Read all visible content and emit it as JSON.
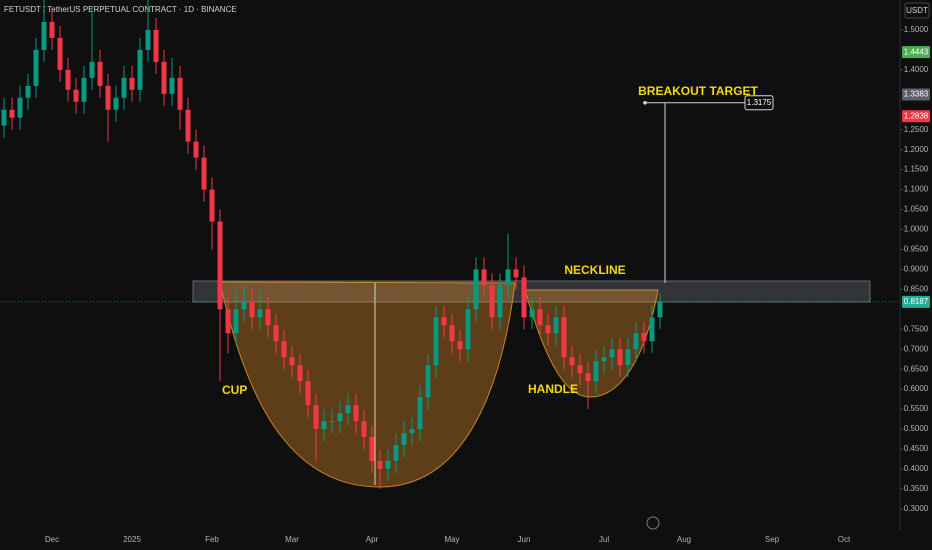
{
  "chart_data": {
    "type": "candlestick",
    "title": "FETUSDT / TetherUS PERPETUAL CONTRACT · 1D · BINANCE",
    "currency": "USDT",
    "categories": [
      null,
      null,
      null,
      null,
      null,
      null,
      "Dec",
      null,
      null,
      null,
      null,
      null,
      null,
      null,
      null,
      null,
      "2025",
      null,
      null,
      null,
      null,
      null,
      null,
      null,
      null,
      null,
      "Feb",
      null,
      null,
      null,
      null,
      null,
      null,
      null,
      null,
      null,
      "Mar",
      null,
      null,
      null,
      null,
      null,
      null,
      null,
      null,
      null,
      "Apr",
      null,
      null,
      null,
      null,
      null,
      null,
      null,
      null,
      null,
      "May",
      null,
      null,
      null,
      null,
      null,
      null,
      null,
      null,
      "Jun",
      null,
      null,
      null,
      null,
      null,
      null,
      null,
      null,
      null,
      "Jul",
      null,
      null,
      null,
      null,
      null,
      null,
      null,
      null,
      null,
      "Aug",
      null,
      null,
      null,
      null,
      null,
      null,
      null,
      null,
      null,
      null,
      "Sep",
      null,
      null,
      null,
      null,
      null,
      null,
      null,
      null,
      "Oct",
      null,
      null,
      null,
      null,
      null,
      null
    ],
    "series": [
      {
        "up_color": "#089981",
        "down_color": "#f23645",
        "open": [
          1.26,
          1.3,
          1.28,
          1.33,
          1.36,
          1.45,
          1.52,
          1.48,
          1.4,
          1.35,
          1.32,
          1.38,
          1.42,
          1.36,
          1.3,
          1.33,
          1.38,
          1.35,
          1.45,
          1.5,
          1.42,
          1.34,
          1.38,
          1.3,
          1.22,
          1.18,
          1.1,
          1.02,
          0.8,
          0.74,
          0.8,
          0.82,
          0.78,
          0.8,
          0.76,
          0.72,
          0.68,
          0.66,
          0.62,
          0.56,
          0.5,
          0.52,
          0.52,
          0.54,
          0.56,
          0.52,
          0.48,
          0.42,
          0.4,
          0.42,
          0.46,
          0.49,
          0.5,
          0.58,
          0.66,
          0.78,
          0.76,
          0.72,
          0.7,
          0.8,
          0.9,
          0.86,
          0.78,
          0.86,
          0.9,
          0.88,
          0.78,
          0.8,
          0.76,
          0.74,
          0.78,
          0.68,
          0.66,
          0.64,
          0.62,
          0.67,
          0.68,
          0.7,
          0.66,
          0.7,
          0.74,
          0.72,
          0.78,
          null,
          null,
          null,
          null,
          null,
          null,
          null,
          null,
          null,
          null,
          null,
          null,
          null,
          null,
          null,
          null,
          null,
          null,
          null,
          null,
          null,
          null,
          null,
          null,
          null,
          null,
          null,
          null,
          null
        ],
        "high": [
          1.33,
          1.33,
          1.36,
          1.39,
          1.48,
          1.6,
          1.55,
          1.51,
          1.43,
          1.38,
          1.41,
          1.56,
          1.45,
          1.39,
          1.36,
          1.41,
          1.41,
          1.48,
          1.58,
          1.53,
          1.45,
          1.43,
          1.41,
          1.33,
          1.25,
          1.21,
          1.13,
          1.05,
          0.83,
          0.85,
          0.86,
          0.85,
          0.84,
          0.83,
          0.79,
          0.75,
          0.71,
          0.69,
          0.65,
          0.59,
          0.55,
          0.55,
          0.57,
          0.59,
          0.59,
          0.55,
          0.51,
          0.45,
          0.45,
          0.49,
          0.52,
          0.53,
          0.61,
          0.69,
          0.81,
          0.81,
          0.79,
          0.75,
          0.83,
          0.93,
          0.93,
          0.89,
          0.89,
          0.99,
          0.93,
          0.91,
          0.83,
          0.83,
          0.79,
          0.81,
          0.81,
          0.71,
          0.69,
          0.67,
          0.7,
          0.71,
          0.73,
          0.73,
          0.73,
          0.77,
          0.77,
          0.81,
          0.84,
          null,
          null,
          null,
          null,
          null,
          null,
          null,
          null,
          null,
          null,
          null,
          null,
          null,
          null,
          null,
          null,
          null,
          null,
          null,
          null,
          null,
          null,
          null,
          null,
          null,
          null,
          null,
          null,
          null
        ],
        "low": [
          1.23,
          1.25,
          1.25,
          1.3,
          1.33,
          1.42,
          1.45,
          1.37,
          1.32,
          1.29,
          1.29,
          1.35,
          1.33,
          1.22,
          1.27,
          1.3,
          1.32,
          1.32,
          1.42,
          1.39,
          1.31,
          1.31,
          1.25,
          1.19,
          1.15,
          1.07,
          0.95,
          0.62,
          0.69,
          0.71,
          0.77,
          0.75,
          0.75,
          0.73,
          0.69,
          0.65,
          0.63,
          0.59,
          0.53,
          0.42,
          0.47,
          0.49,
          0.49,
          0.51,
          0.49,
          0.45,
          0.39,
          0.35,
          0.37,
          0.39,
          0.43,
          0.46,
          0.47,
          0.55,
          0.63,
          0.73,
          0.69,
          0.67,
          0.67,
          0.77,
          0.83,
          0.75,
          0.75,
          0.83,
          0.85,
          0.75,
          0.75,
          0.73,
          0.71,
          0.71,
          0.65,
          0.63,
          0.61,
          0.55,
          0.59,
          0.64,
          0.65,
          0.63,
          0.63,
          0.67,
          0.69,
          0.69,
          0.75,
          null,
          null,
          null,
          null,
          null,
          null,
          null,
          null,
          null,
          null,
          null,
          null,
          null,
          null,
          null,
          null,
          null,
          null,
          null,
          null,
          null,
          null,
          null,
          null,
          null,
          null,
          null,
          null,
          null
        ],
        "close": [
          1.3,
          1.28,
          1.33,
          1.36,
          1.45,
          1.52,
          1.48,
          1.4,
          1.35,
          1.32,
          1.38,
          1.42,
          1.36,
          1.3,
          1.33,
          1.38,
          1.35,
          1.45,
          1.5,
          1.42,
          1.34,
          1.38,
          1.3,
          1.22,
          1.18,
          1.1,
          1.02,
          0.8,
          0.74,
          0.8,
          0.82,
          0.78,
          0.8,
          0.76,
          0.72,
          0.68,
          0.66,
          0.62,
          0.56,
          0.5,
          0.52,
          0.52,
          0.54,
          0.56,
          0.52,
          0.48,
          0.42,
          0.4,
          0.42,
          0.46,
          0.49,
          0.5,
          0.58,
          0.66,
          0.78,
          0.76,
          0.72,
          0.7,
          0.8,
          0.9,
          0.86,
          0.78,
          0.86,
          0.9,
          0.88,
          0.78,
          0.8,
          0.76,
          0.74,
          0.78,
          0.68,
          0.66,
          0.64,
          0.62,
          0.67,
          0.68,
          0.7,
          0.66,
          0.7,
          0.74,
          0.72,
          0.78,
          0.8187,
          null,
          null,
          null,
          null,
          null,
          null,
          null,
          null,
          null,
          null,
          null,
          null,
          null,
          null,
          null,
          null,
          null,
          null,
          null,
          null,
          null,
          null,
          null,
          null,
          null,
          null,
          null,
          null,
          null
        ]
      }
    ],
    "ylim": [
      0.247,
      1.575
    ],
    "yticks": [
      {
        "value": 1.5,
        "label": "1.5000"
      },
      {
        "value": 1.4,
        "label": "1.4000"
      },
      {
        "value": 1.25,
        "label": "1.2500"
      },
      {
        "value": 1.2,
        "label": "1.2000"
      },
      {
        "value": 1.15,
        "label": "1.1500"
      },
      {
        "value": 1.1,
        "label": "1.1000"
      },
      {
        "value": 1.05,
        "label": "1.0500"
      },
      {
        "value": 1.0,
        "label": "1.0000"
      },
      {
        "value": 0.95,
        "label": "0.9500"
      },
      {
        "value": 0.9,
        "label": "0.9000"
      },
      {
        "value": 0.85,
        "label": "0.8500"
      },
      {
        "value": 0.75,
        "label": "0.7500"
      },
      {
        "value": 0.7,
        "label": "0.7000"
      },
      {
        "value": 0.65,
        "label": "0.6500"
      },
      {
        "value": 0.6,
        "label": "0.6000"
      },
      {
        "value": 0.55,
        "label": "0.5500"
      },
      {
        "value": 0.5,
        "label": "0.5000"
      },
      {
        "value": 0.45,
        "label": "0.4500"
      },
      {
        "value": 0.4,
        "label": "0.4000"
      },
      {
        "value": 0.35,
        "label": "0.3500"
      },
      {
        "value": 0.3,
        "label": "0.3000"
      }
    ],
    "grid": false,
    "price_labels": [
      {
        "value": 1.4443,
        "color": "#4caf50"
      },
      {
        "value": 1.3383,
        "color": "#5d606b"
      },
      {
        "value": 1.2838,
        "color": "#f23645"
      },
      {
        "value": 0.8187,
        "color": "#22ab94"
      }
    ],
    "target": 1.3175,
    "annotations": [
      "CUP",
      "HANDLE",
      "NECKLINE",
      "BREAKOUT TARGET"
    ]
  }
}
